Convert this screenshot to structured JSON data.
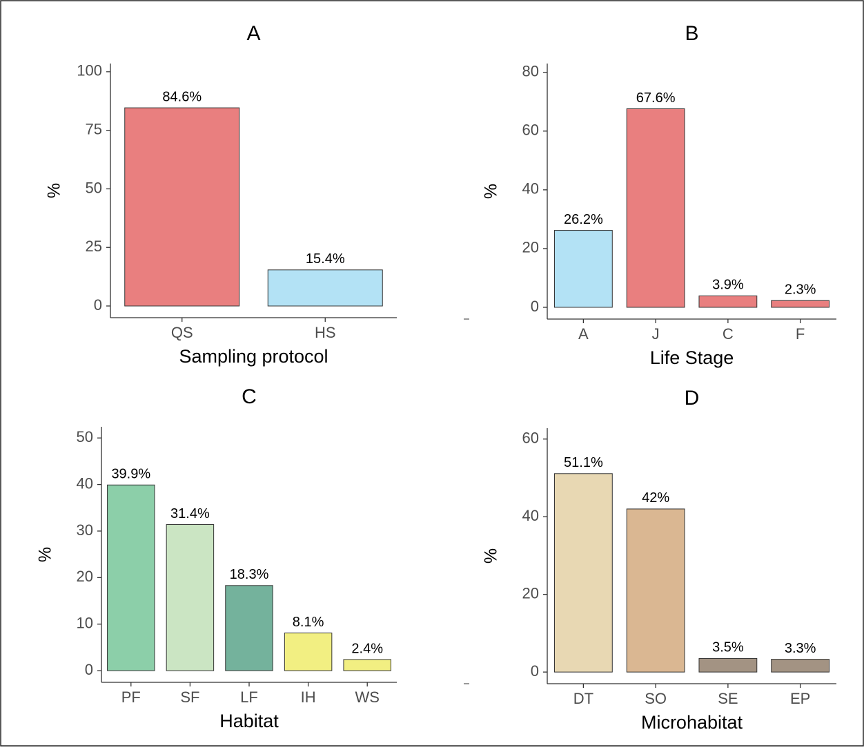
{
  "chart_data": [
    {
      "type": "bar",
      "title": "A",
      "xlabel": "Sampling protocol",
      "ylabel": "%",
      "categories": [
        "QS",
        "HS"
      ],
      "values": [
        84.6,
        15.4
      ],
      "value_labels": [
        "84.6%",
        "15.4%"
      ],
      "colors": [
        "#e97f7f",
        "#b3e2f5"
      ],
      "ylim": [
        -5,
        103.5
      ],
      "yticks": [
        0,
        25,
        50,
        75,
        100
      ]
    },
    {
      "type": "bar",
      "title": "B",
      "xlabel": "Life Stage",
      "ylabel": "%",
      "categories": [
        "A",
        "J",
        "C",
        "F"
      ],
      "values": [
        26.2,
        67.6,
        3.9,
        2.3
      ],
      "value_labels": [
        "26.2%",
        "67.6%",
        "3.9%",
        "2.3%"
      ],
      "colors": [
        "#b3e2f5",
        "#e97f7f",
        "#e97f7f",
        "#e97f7f"
      ],
      "ylim": [
        -4,
        83
      ],
      "yticks": [
        0,
        20,
        40,
        60,
        80
      ]
    },
    {
      "type": "bar",
      "title": "C",
      "xlabel": "Habitat",
      "ylabel": "%",
      "categories": [
        "PF",
        "SF",
        "LF",
        "IH",
        "WS"
      ],
      "values": [
        39.9,
        31.4,
        18.3,
        8.1,
        2.4
      ],
      "value_labels": [
        "39.9%",
        "31.4%",
        "18.3%",
        "8.1%",
        "2.4%"
      ],
      "colors": [
        "#8ccfa9",
        "#cbe5c3",
        "#74b29c",
        "#f2ef82",
        "#f2ef82"
      ],
      "ylim": [
        -2.5,
        52.4
      ],
      "yticks": [
        0,
        10,
        20,
        30,
        40,
        50
      ]
    },
    {
      "type": "bar",
      "title": "D",
      "xlabel": "Microhabitat",
      "ylabel": "%",
      "categories": [
        "DT",
        "SO",
        "SE",
        "EP"
      ],
      "values": [
        51.1,
        42,
        3.5,
        3.3
      ],
      "value_labels": [
        "51.1%",
        "42%",
        "3.5%",
        "3.3%"
      ],
      "colors": [
        "#e8d8b3",
        "#dab792",
        "#a39383",
        "#a39383"
      ],
      "ylim": [
        -3,
        62.8
      ],
      "yticks": [
        0,
        20,
        40,
        60
      ]
    }
  ]
}
